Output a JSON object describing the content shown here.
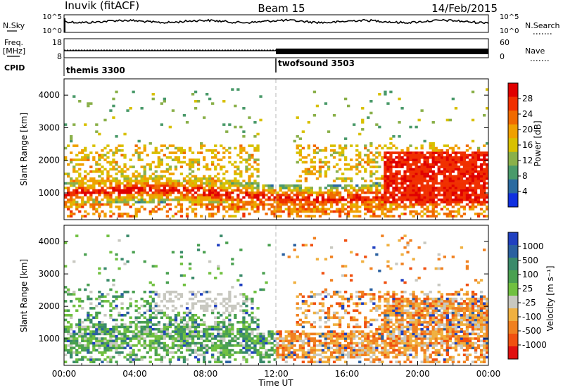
{
  "header": {
    "station": "Inuvik (fitACF)",
    "beam": "Beam 15",
    "date": "14/Feb/2015"
  },
  "summary_panels": {
    "nsky_label": "N.Sky",
    "nsearch_label": "N.Search",
    "freq_label_1": "Freq.",
    "freq_label_2": "[MHz]",
    "nave_label": "Nave",
    "cpid_label": "CPID",
    "noise_ticks_left": [
      "10^5",
      "10^0"
    ],
    "noise_ticks_right": [
      "10^5",
      "10^0"
    ],
    "freq_ticks_left": [
      "18",
      "8"
    ],
    "nave_ticks_right": [
      "60",
      "0"
    ],
    "cpid_segments": [
      {
        "name": "themis 3300",
        "start_hour": 0
      },
      {
        "name": "twofsound 3503",
        "start_hour": 12
      }
    ]
  },
  "chart_data": [
    {
      "type": "heatmap",
      "panel": "power",
      "ylabel": "Slant Range [km]",
      "xlabel": "",
      "ylim": [
        180,
        4500
      ],
      "yticks": [
        "1000",
        "2000",
        "3000",
        "4000"
      ],
      "colorbar": {
        "label": "Power [dB]",
        "ticks": [
          "28",
          "24",
          "20",
          "16",
          "12",
          "8",
          "4"
        ],
        "colors": [
          "#e00000",
          "#f03000",
          "#f06a00",
          "#f0a000",
          "#d8c000",
          "#8ab04a",
          "#4a9a6a",
          "#2a6aa0",
          "#1030e0"
        ]
      }
    },
    {
      "type": "heatmap",
      "panel": "velocity",
      "ylabel": "Slant Range [km]",
      "xlabel": "Time UT",
      "ylim": [
        180,
        4500
      ],
      "yticks": [
        "1000",
        "2000",
        "3000",
        "4000"
      ],
      "xticks": [
        "00:00",
        "04:00",
        "08:00",
        "12:00",
        "16:00",
        "20:00",
        "00:00"
      ],
      "colorbar": {
        "label": "Velocity [m s⁻¹]",
        "ticks": [
          "1000",
          "500",
          "100",
          "25",
          "-25",
          "-100",
          "-500",
          "-1000"
        ],
        "colors": [
          "#2040c0",
          "#2a60a0",
          "#3a8a6a",
          "#4aa050",
          "#70c040",
          "#c8c8c0",
          "#f0b040",
          "#f08020",
          "#f05010",
          "#e01010"
        ]
      }
    }
  ]
}
